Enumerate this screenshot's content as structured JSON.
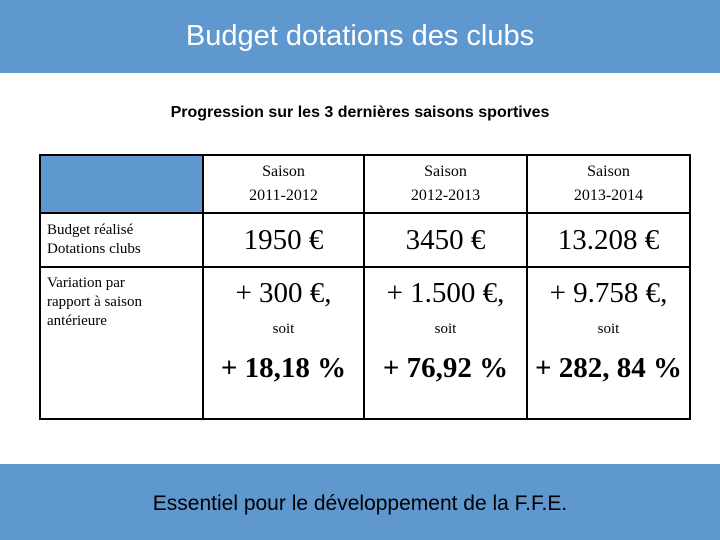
{
  "header": {
    "title": "Budget dotations des clubs"
  },
  "subtitle": "Progression sur les 3 dernières saisons sportives",
  "table": {
    "columns": [
      {
        "line1": "Saison",
        "line2": "2011-2012"
      },
      {
        "line1": "Saison",
        "line2": "2012-2013"
      },
      {
        "line1": "Saison",
        "line2": "2013-2014"
      }
    ],
    "row_budget": {
      "label_line1": "Budget réalisé",
      "label_line2": "Dotations clubs",
      "values": [
        "1950 €",
        "3450 €",
        "13.208 €"
      ]
    },
    "row_variation": {
      "label_line1": "Variation par",
      "label_line2": "rapport à saison",
      "label_line3": "antérieure",
      "amounts": [
        "+ 300 €,",
        "+ 1.500 €,",
        "+ 9.758 €,"
      ],
      "soit": [
        "soit",
        "soit",
        "soit"
      ],
      "percents": [
        "+ 18,18 %",
        "+ 76,92 %",
        "+ 282, 84 %"
      ]
    }
  },
  "footer": {
    "text": "Essentiel pour le développement de la F.F.E."
  },
  "colors": {
    "band": "#5f97cf",
    "text": "#000000",
    "title_text": "#ffffff"
  }
}
